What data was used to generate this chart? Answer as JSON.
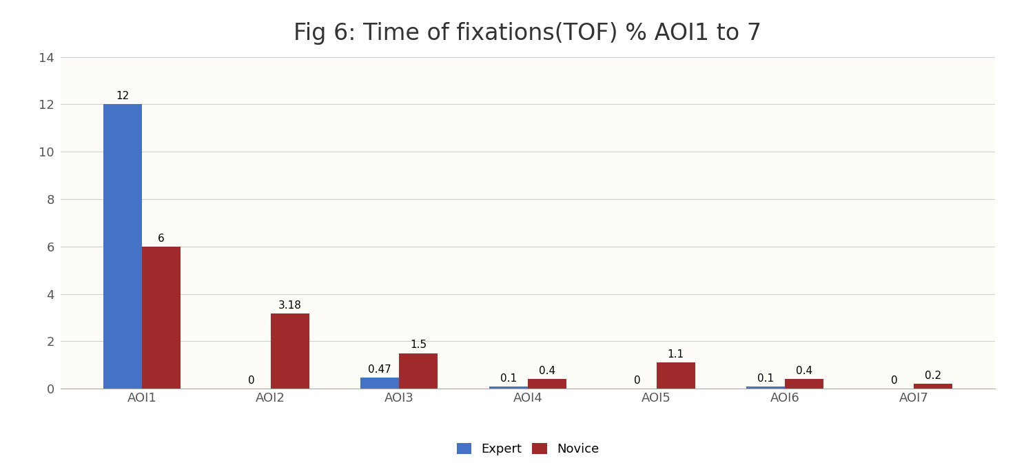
{
  "title": "Fig 6: Time of fixations(TOF) % AOI1 to 7",
  "categories": [
    "AOI1",
    "AOI2",
    "AOI3",
    "AOI4",
    "AOI5",
    "AOI6",
    "AOI7"
  ],
  "expert_values": [
    12,
    0,
    0.47,
    0.1,
    0,
    0.1,
    0
  ],
  "novice_values": [
    6,
    3.18,
    1.5,
    0.4,
    1.1,
    0.4,
    0.2
  ],
  "expert_labels": [
    "12",
    "0",
    "0.47",
    "0.1",
    "0",
    "0.1",
    "0"
  ],
  "novice_labels": [
    "6",
    "3.18",
    "1.5",
    "0.4",
    "1.1",
    "0.4",
    "0.2"
  ],
  "expert_color": "#4472C4",
  "novice_color": "#9E2A2B",
  "ylim": [
    0,
    14
  ],
  "yticks": [
    0,
    2,
    4,
    6,
    8,
    10,
    12,
    14
  ],
  "bar_width": 0.3,
  "legend_labels": [
    "Expert",
    "Novice"
  ],
  "background_color": "#FFFFFF",
  "plot_bg_color": "#FDFCF7",
  "grid_color": "#D0D0D0",
  "title_fontsize": 24,
  "label_fontsize": 11,
  "tick_fontsize": 13,
  "legend_fontsize": 13
}
